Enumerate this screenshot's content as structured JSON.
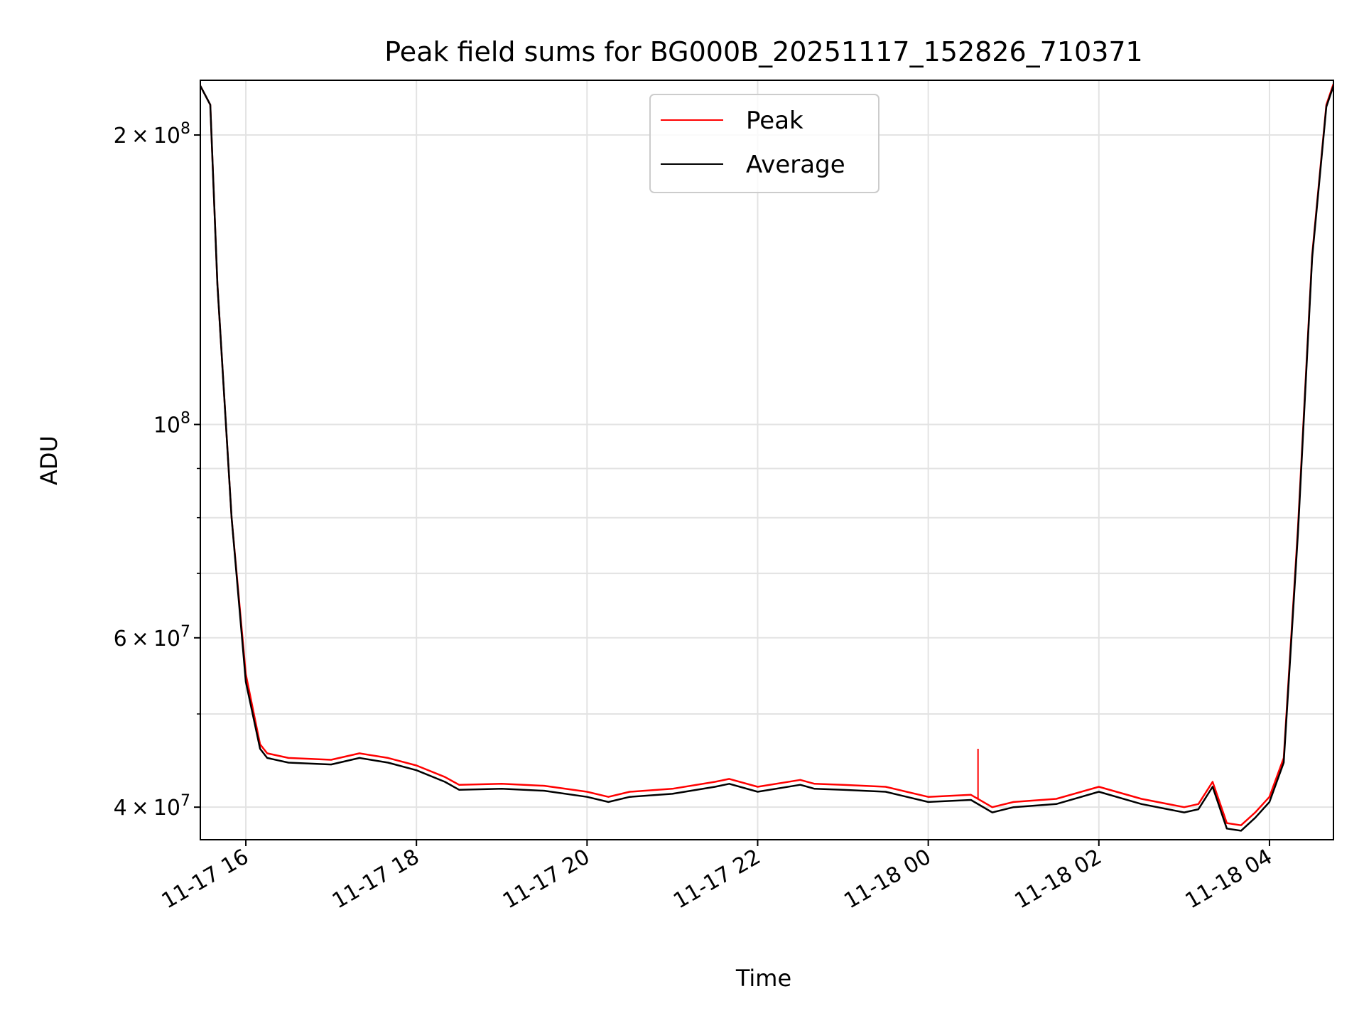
{
  "chart_data": {
    "type": "line",
    "title": "Peak field sums for BG000B_20251117_152826_710371",
    "xlabel": "Time",
    "ylabel": "ADU",
    "yscale": "log",
    "xlim": [
      "2025-11-17 15:28",
      "2025-11-18 04:45"
    ],
    "ylim": [
      37000000,
      228000000
    ],
    "grid": true,
    "legend_position": "top-center",
    "x_ticks": [
      "11-17 16",
      "11-17 18",
      "11-17 20",
      "11-17 22",
      "11-18 00",
      "11-18 02",
      "11-18 04"
    ],
    "y_ticks": [
      {
        "value": 40000000,
        "mantissa": "4",
        "exponent": "7"
      },
      {
        "value": 60000000,
        "mantissa": "6",
        "exponent": "7"
      },
      {
        "value": 100000000,
        "mantissa": "",
        "exponent": "8"
      },
      {
        "value": 200000000,
        "mantissa": "2",
        "exponent": "8"
      }
    ],
    "x": [
      "2025-11-17 15:28",
      "2025-11-17 15:35",
      "2025-11-17 15:40",
      "2025-11-17 15:50",
      "2025-11-17 16:00",
      "2025-11-17 16:10",
      "2025-11-17 16:15",
      "2025-11-17 16:30",
      "2025-11-17 17:00",
      "2025-11-17 17:20",
      "2025-11-17 17:40",
      "2025-11-17 18:00",
      "2025-11-17 18:20",
      "2025-11-17 18:30",
      "2025-11-17 19:00",
      "2025-11-17 19:30",
      "2025-11-17 20:00",
      "2025-11-17 20:15",
      "2025-11-17 20:30",
      "2025-11-17 21:00",
      "2025-11-17 21:30",
      "2025-11-17 21:40",
      "2025-11-17 22:00",
      "2025-11-17 22:30",
      "2025-11-17 22:40",
      "2025-11-17 23:00",
      "2025-11-17 23:30",
      "2025-11-18 00:00",
      "2025-11-18 00:30",
      "2025-11-18 00:45",
      "2025-11-18 01:00",
      "2025-11-18 01:30",
      "2025-11-18 02:00",
      "2025-11-18 02:30",
      "2025-11-18 03:00",
      "2025-11-18 03:10",
      "2025-11-18 03:20",
      "2025-11-18 03:30",
      "2025-11-18 03:40",
      "2025-11-18 03:50",
      "2025-11-18 04:00",
      "2025-11-18 04:10",
      "2025-11-18 04:20",
      "2025-11-18 04:30",
      "2025-11-18 04:40",
      "2025-11-18 04:45"
    ],
    "series": [
      {
        "name": "Peak",
        "color": "#ff0000",
        "values": [
          225000000,
          215000000,
          140000000,
          80000000,
          55000000,
          46500000,
          45500000,
          45000000,
          44800000,
          45500000,
          45000000,
          44200000,
          43000000,
          42200000,
          42300000,
          42100000,
          41500000,
          41000000,
          41500000,
          41800000,
          42500000,
          42800000,
          42000000,
          42700000,
          42300000,
          42200000,
          42000000,
          41000000,
          41200000,
          40000000,
          40500000,
          40800000,
          42000000,
          40800000,
          40000000,
          40300000,
          42500000,
          38500000,
          38300000,
          39500000,
          41000000,
          45000000,
          78000000,
          150000000,
          215000000,
          226000000
        ],
        "spikes": [
          {
            "x": "2025-11-18 00:35",
            "value": 46000000
          }
        ]
      },
      {
        "name": "Average",
        "color": "#000000",
        "values": [
          225000000,
          215000000,
          140000000,
          80000000,
          54000000,
          46000000,
          45000000,
          44500000,
          44300000,
          45000000,
          44500000,
          43700000,
          42500000,
          41700000,
          41800000,
          41600000,
          41000000,
          40500000,
          41000000,
          41300000,
          42000000,
          42300000,
          41500000,
          42200000,
          41800000,
          41700000,
          41500000,
          40500000,
          40700000,
          39500000,
          40000000,
          40300000,
          41500000,
          40300000,
          39500000,
          39800000,
          42000000,
          38000000,
          37800000,
          39000000,
          40500000,
          44500000,
          77000000,
          149000000,
          214000000,
          225000000
        ]
      }
    ]
  }
}
